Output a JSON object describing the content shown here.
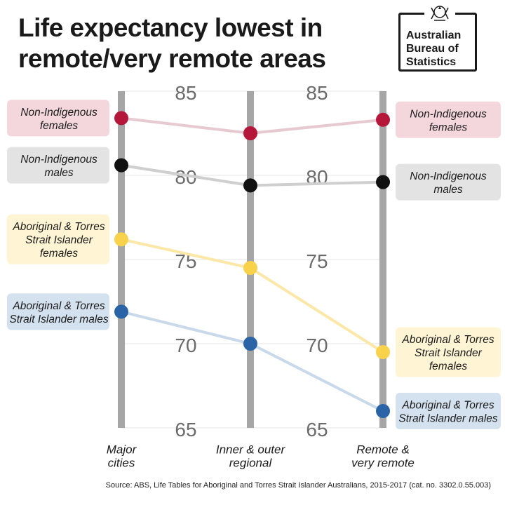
{
  "title_lines": [
    "Life expectancy lowest in",
    "remote/very remote areas"
  ],
  "logo": {
    "lines": [
      "Australian",
      "Bureau of",
      "Statistics"
    ]
  },
  "source": "Source: ABS, Life Tables for Aboriginal and Torres Strait Islander Australians, 2015-2017 (cat. no. 3302.0.55.003)",
  "chart_data": {
    "type": "line",
    "title": "Life expectancy lowest in remote/very remote areas",
    "categories": [
      [
        "Major",
        "cities"
      ],
      [
        "Inner & outer",
        "regional"
      ],
      [
        "Remote &",
        "very remote"
      ]
    ],
    "ylim": [
      65,
      85
    ],
    "yticks": [
      65,
      70,
      75,
      80,
      85
    ],
    "series": [
      {
        "name": "Non-Indigenous females",
        "label_left": [
          "Non-Indigenous",
          "females"
        ],
        "label_right": [
          "Non-Indigenous",
          "females"
        ],
        "values": [
          83.4,
          82.5,
          83.3
        ],
        "color": "#b5173a",
        "line": "#e7c9d1",
        "box": "#f3d7dc"
      },
      {
        "name": "Non-Indigenous males",
        "label_left": [
          "Non-Indigenous",
          "males"
        ],
        "label_right": [
          "Non-Indigenous",
          "males"
        ],
        "values": [
          80.6,
          79.4,
          79.6
        ],
        "color": "#111111",
        "line": "#cfcfcf",
        "box": "#e3e3e3"
      },
      {
        "name": "Aboriginal & Torres Strait Islander females",
        "label_left": [
          "Aboriginal & Torres",
          "Strait Islander",
          "females"
        ],
        "label_right": [
          "Aboriginal & Torres",
          "Strait Islander",
          "females"
        ],
        "values": [
          76.2,
          74.5,
          69.5
        ],
        "color": "#f7d24a",
        "line": "#fbe8a8",
        "box": "#fff5d4"
      },
      {
        "name": "Aboriginal & Torres Strait Islander males",
        "label_left": [
          "Aboriginal & Torres",
          "Strait Islander males"
        ],
        "label_right": [
          "Aboriginal & Torres",
          "Strait Islander males"
        ],
        "values": [
          71.9,
          70.0,
          66.0
        ],
        "color": "#2a64a6",
        "line": "#c9d9ea",
        "box": "#d4e1ef"
      }
    ]
  },
  "colors": {
    "axis": "#a6a6a6",
    "grid": "#e6e6e6",
    "tick": "#6b6b6b"
  }
}
